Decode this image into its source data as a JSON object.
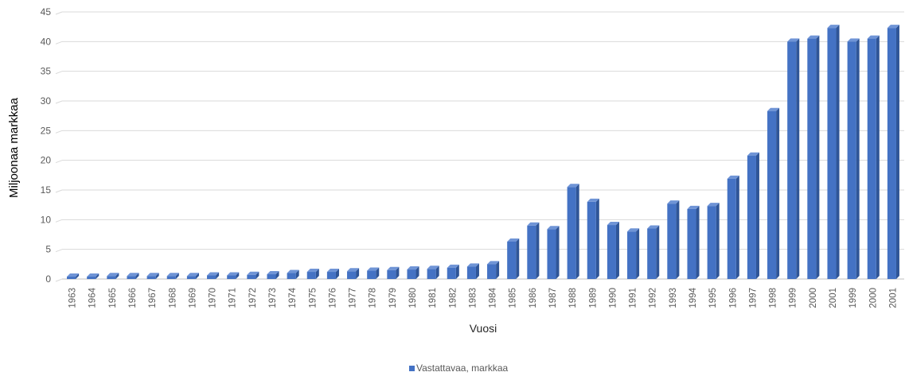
{
  "chart_data": {
    "type": "bar",
    "title": "",
    "xlabel": "Vuosi",
    "ylabel": "Miljoonaa markkaa",
    "ylim": [
      0,
      45
    ],
    "yticks": [
      0,
      5,
      10,
      15,
      20,
      25,
      30,
      35,
      40,
      45
    ],
    "grid": true,
    "legend_position": "bottom",
    "categories": [
      "1963",
      "1964",
      "1965",
      "1966",
      "1967",
      "1968",
      "1969",
      "1970",
      "1971",
      "1972",
      "1973",
      "1974",
      "1975",
      "1976",
      "1977",
      "1978",
      "1979",
      "1980",
      "1981",
      "1982",
      "1983",
      "1984",
      "1985",
      "1986",
      "1987",
      "1988",
      "1989",
      "1990",
      "1991",
      "1992",
      "1993",
      "1994",
      "1995",
      "1996",
      "1997",
      "1998",
      "1999",
      "2000",
      "2001",
      "1999",
      "2000",
      "2001"
    ],
    "series": [
      {
        "name": "Vastattavaa, markkaa",
        "color": "#4472C4",
        "values": [
          0.4,
          0.4,
          0.5,
          0.5,
          0.5,
          0.5,
          0.5,
          0.6,
          0.6,
          0.7,
          0.8,
          1.0,
          1.2,
          1.2,
          1.3,
          1.4,
          1.5,
          1.6,
          1.7,
          1.9,
          2.1,
          2.5,
          6.3,
          9.0,
          8.4,
          15.5,
          13.0,
          9.1,
          8.0,
          8.5,
          12.7,
          11.8,
          12.3,
          16.9,
          20.8,
          28.3,
          40.0,
          40.5,
          42.3,
          40.0,
          40.5,
          42.3
        ]
      }
    ]
  }
}
